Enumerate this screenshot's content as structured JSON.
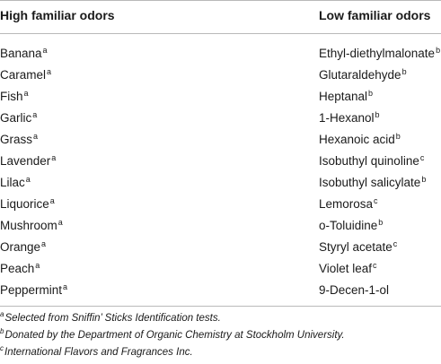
{
  "table": {
    "headers": {
      "high": "High familiar odors",
      "low": "Low familiar odors"
    },
    "rows": [
      {
        "high": "Banana",
        "high_sup": "a",
        "low": "Ethyl-diethylmalonate",
        "low_sup": "b"
      },
      {
        "high": "Caramel",
        "high_sup": "a",
        "low": "Glutaraldehyde",
        "low_sup": "b"
      },
      {
        "high": "Fish",
        "high_sup": "a",
        "low": "Heptanal",
        "low_sup": "b"
      },
      {
        "high": "Garlic",
        "high_sup": "a",
        "low": "1-Hexanol",
        "low_sup": "b"
      },
      {
        "high": "Grass",
        "high_sup": "a",
        "low": "Hexanoic acid",
        "low_sup": "b"
      },
      {
        "high": "Lavender",
        "high_sup": "a",
        "low": "Isobuthyl quinoline",
        "low_sup": "c"
      },
      {
        "high": "Lilac",
        "high_sup": "a",
        "low": "Isobuthyl salicylate",
        "low_sup": "b"
      },
      {
        "high": "Liquorice",
        "high_sup": "a",
        "low": "Lemorosa",
        "low_sup": "c"
      },
      {
        "high": "Mushroom",
        "high_sup": "a",
        "low": "o-Toluidine",
        "low_sup": "b"
      },
      {
        "high": "Orange",
        "high_sup": "a",
        "low": "Styryl acetate",
        "low_sup": "c"
      },
      {
        "high": "Peach",
        "high_sup": "a",
        "low": "Violet leaf",
        "low_sup": "c"
      },
      {
        "high": "Peppermint",
        "high_sup": "a",
        "low": "9-Decen-1-ol",
        "low_sup": ""
      }
    ]
  },
  "footnotes": [
    {
      "mark": "a",
      "text": "Selected from Sniffin’ Sticks Identification tests."
    },
    {
      "mark": "b",
      "text": "Donated by the Department of Organic Chemistry at Stockholm University."
    },
    {
      "mark": "c",
      "text": "International Flavors and Fragrances Inc."
    }
  ]
}
